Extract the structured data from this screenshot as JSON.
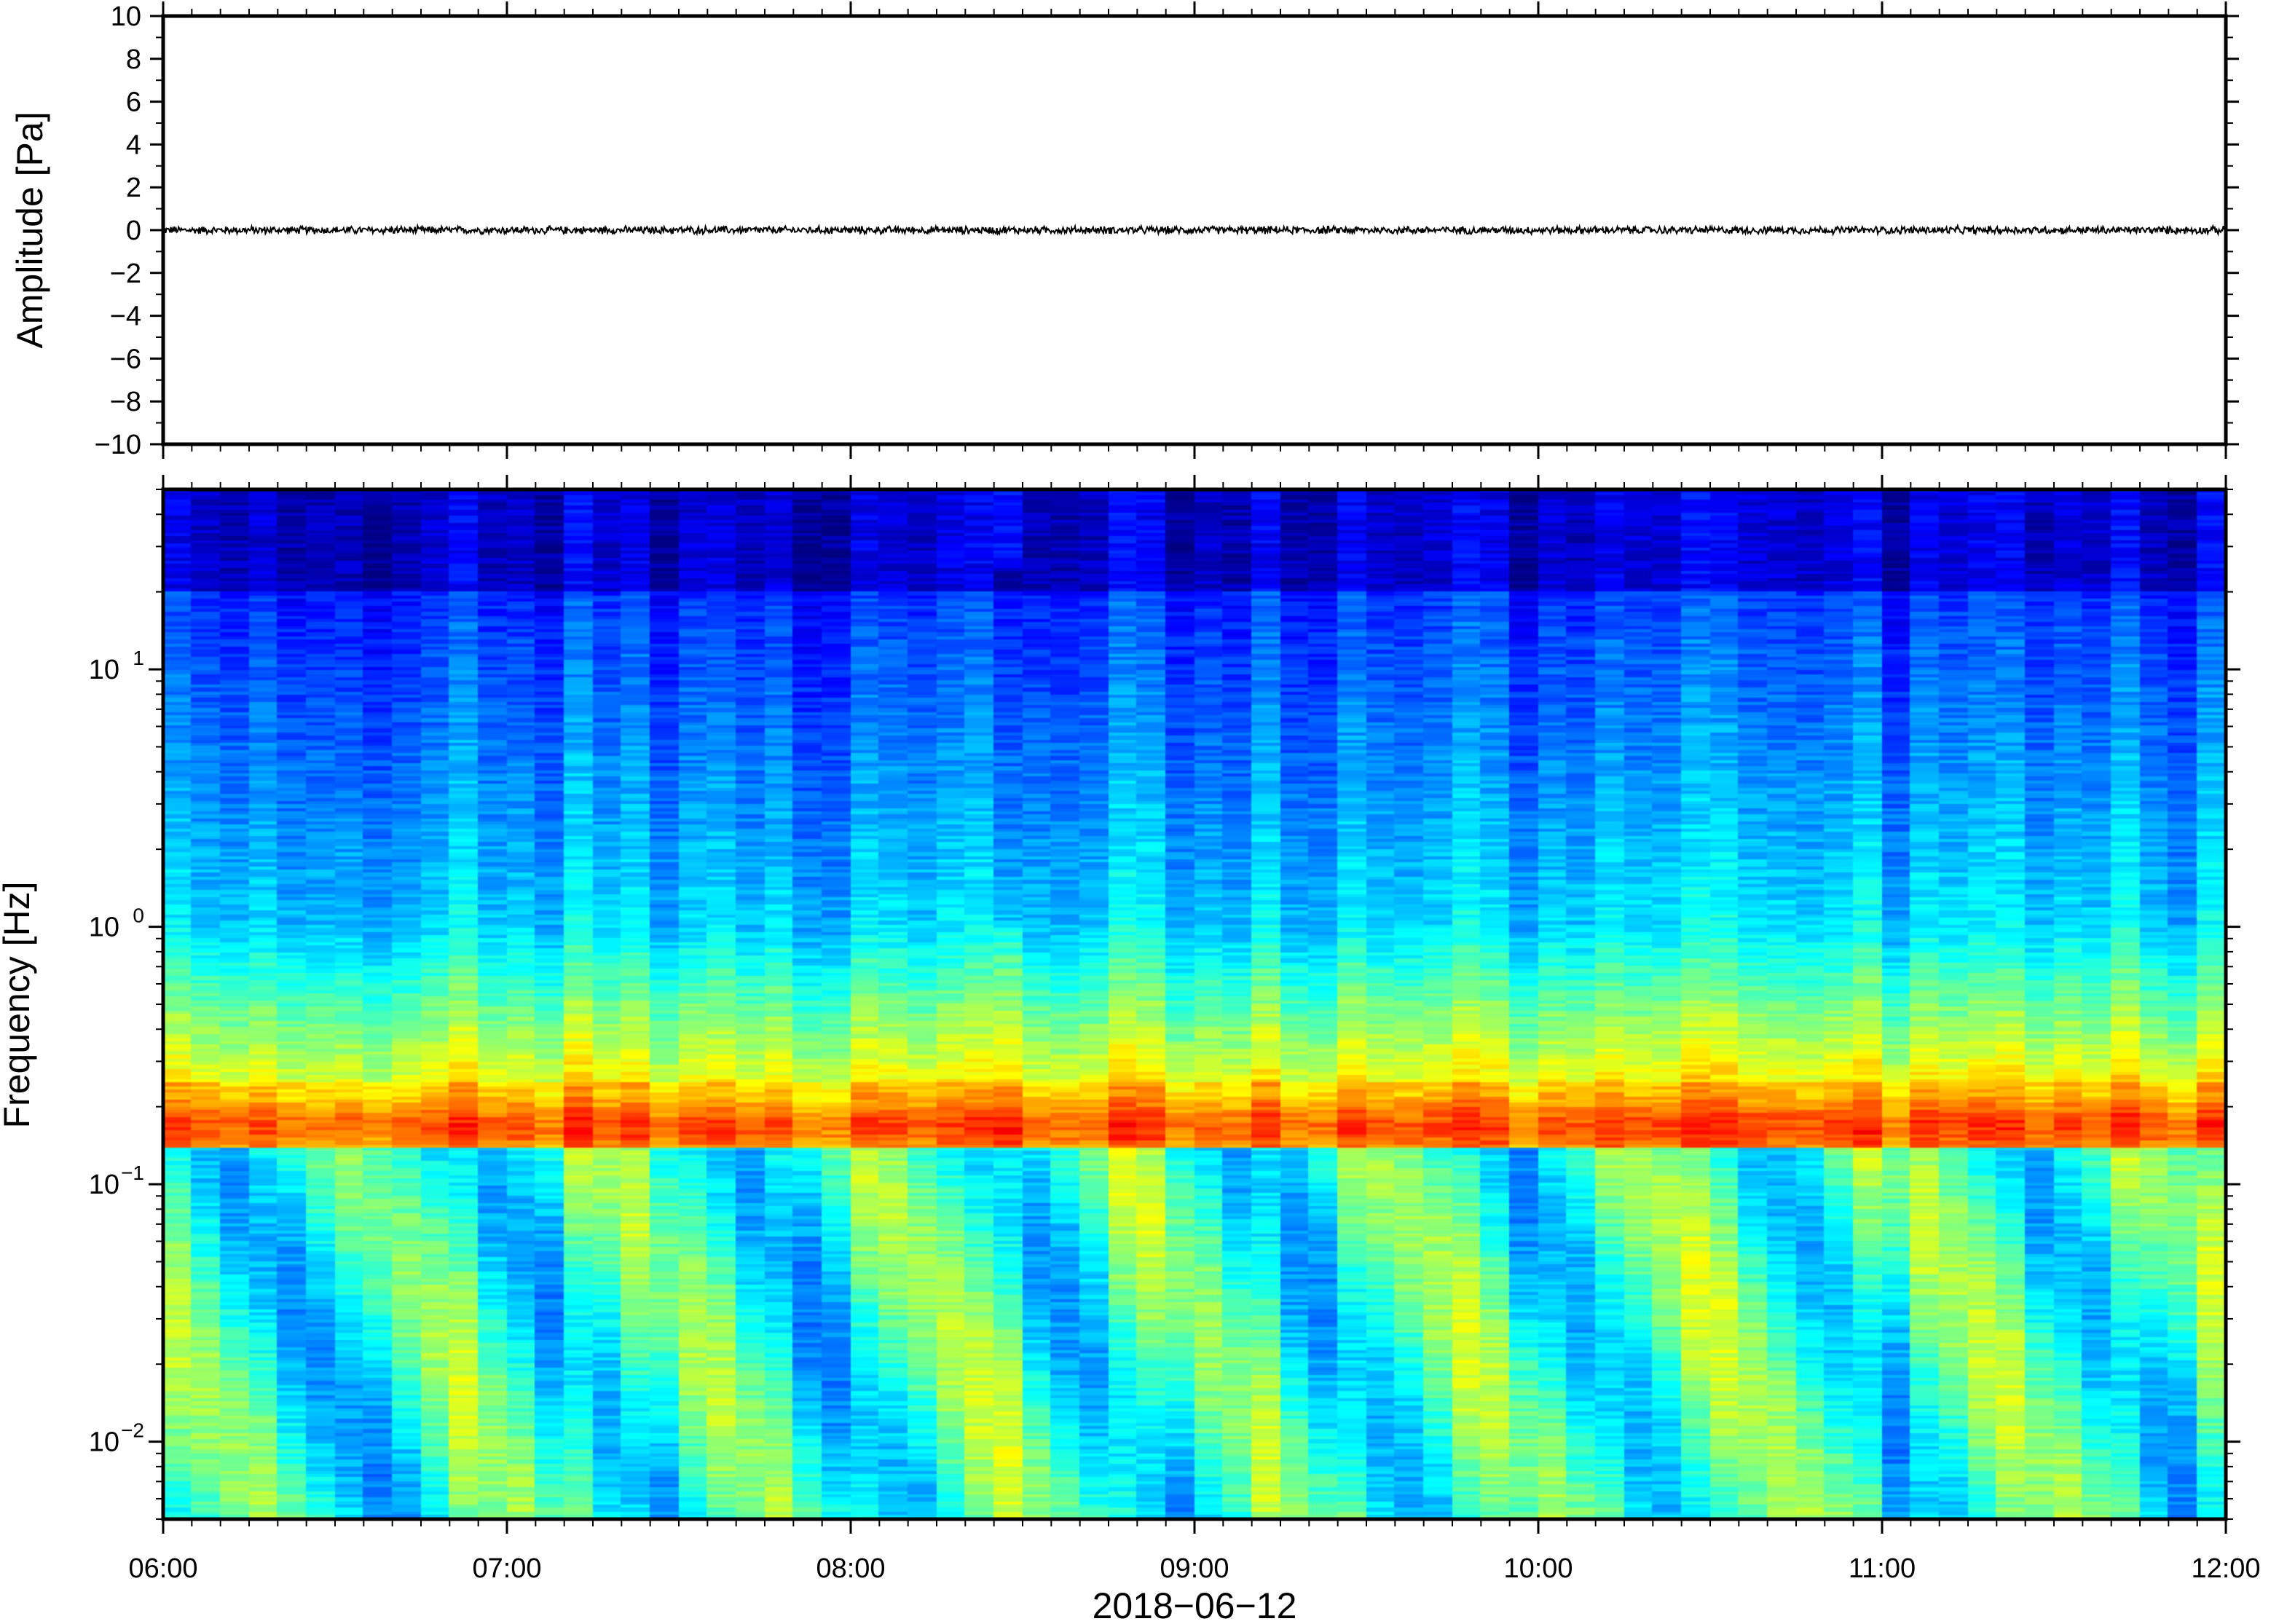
{
  "chart_data": [
    {
      "type": "line",
      "panel": "waveform",
      "ylabel": "Amplitude [Pa]",
      "ylim": [
        -10,
        10
      ],
      "yticks": [
        "10",
        "8",
        "6",
        "4",
        "2",
        "0",
        "−2",
        "−4",
        "−6",
        "−8",
        "−10"
      ],
      "yticks_values": [
        10,
        8,
        6,
        4,
        2,
        0,
        -2,
        -4,
        -6,
        -8,
        -10
      ],
      "xlim": [
        "06:00",
        "12:00"
      ],
      "series_description": "noise trace centred on 0",
      "noise_amplitude": 0.15,
      "color": "#000000"
    },
    {
      "type": "heatmap",
      "panel": "spectrogram",
      "ylabel": "Frequency [Hz]",
      "yscale": "log",
      "ylim": [
        0.005,
        50
      ],
      "yticks": [
        {
          "base": "10",
          "exp": "1",
          "value": 10
        },
        {
          "base": "10",
          "exp": "0",
          "value": 1
        },
        {
          "base": "10",
          "exp": "−1",
          "value": 0.1
        },
        {
          "base": "10",
          "exp": "−2",
          "value": 0.01
        }
      ],
      "xlim": [
        "06:00",
        "12:00"
      ],
      "xticks": [
        "06:00",
        "07:00",
        "08:00",
        "09:00",
        "10:00",
        "11:00",
        "12:00"
      ],
      "xlabel": "2018−06−12",
      "colormap": "jet",
      "dominant_band_hz": [
        0.14,
        0.25
      ],
      "colors": {
        "high_freq": "#0a1378",
        "mid": "#2e8ff0",
        "band": "#f7a34a",
        "low": "#78e8c8"
      }
    }
  ]
}
